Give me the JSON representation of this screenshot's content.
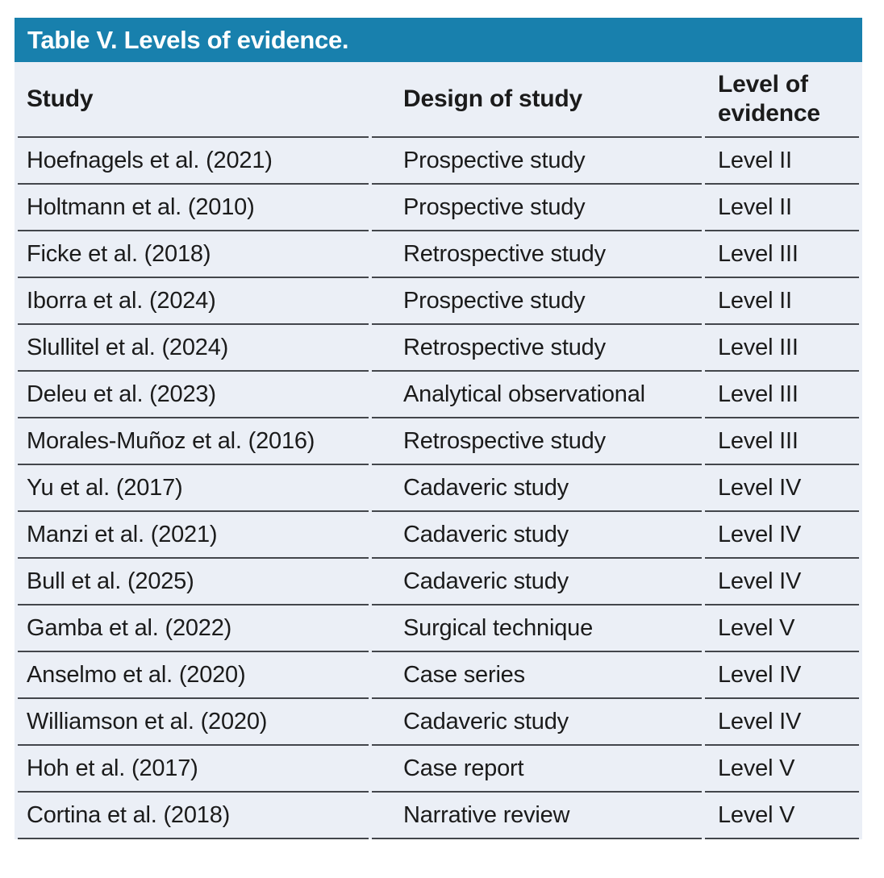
{
  "table": {
    "title": "Table V. Levels of evidence.",
    "columns": {
      "study": "Study",
      "design": "Design of study",
      "level": "Level of evidence"
    },
    "rows": [
      {
        "study": "Hoefnagels et al. (2021)",
        "design": "Prospective study",
        "level": "Level II"
      },
      {
        "study": "Holtmann et al. (2010)",
        "design": "Prospective study",
        "level": "Level II"
      },
      {
        "study": "Ficke et al. (2018)",
        "design": "Retrospective study",
        "level": "Level III"
      },
      {
        "study": "Iborra et al. (2024)",
        "design": "Prospective study",
        "level": "Level II"
      },
      {
        "study": "Slullitel et al. (2024)",
        "design": "Retrospective study",
        "level": "Level III"
      },
      {
        "study": "Deleu et al. (2023)",
        "design": "Analytical observational",
        "level": "Level III"
      },
      {
        "study": "Morales-Muñoz et al. (2016)",
        "design": "Retrospective study",
        "level": "Level III"
      },
      {
        "study": "Yu et al. (2017)",
        "design": "Cadaveric study",
        "level": "Level IV"
      },
      {
        "study": "Manzi et al. (2021)",
        "design": "Cadaveric study",
        "level": "Level IV"
      },
      {
        "study": "Bull et al. (2025)",
        "design": "Cadaveric study",
        "level": "Level IV"
      },
      {
        "study": "Gamba et al. (2022)",
        "design": "Surgical technique",
        "level": "Level V"
      },
      {
        "study": "Anselmo et al. (2020)",
        "design": "Case series",
        "level": "Level IV"
      },
      {
        "study": "Williamson et al. (2020)",
        "design": "Cadaveric study",
        "level": "Level IV"
      },
      {
        "study": "Hoh et al. (2017)",
        "design": "Case report",
        "level": "Level V"
      },
      {
        "study": "Cortina et al. (2018)",
        "design": "Narrative review",
        "level": "Level V"
      }
    ],
    "colors": {
      "title_bg": "#1880AD",
      "title_text": "#FFFFFF",
      "row_bg": "#EBEFF6",
      "rule": "#43464B",
      "text": "#1B1B1B"
    }
  }
}
